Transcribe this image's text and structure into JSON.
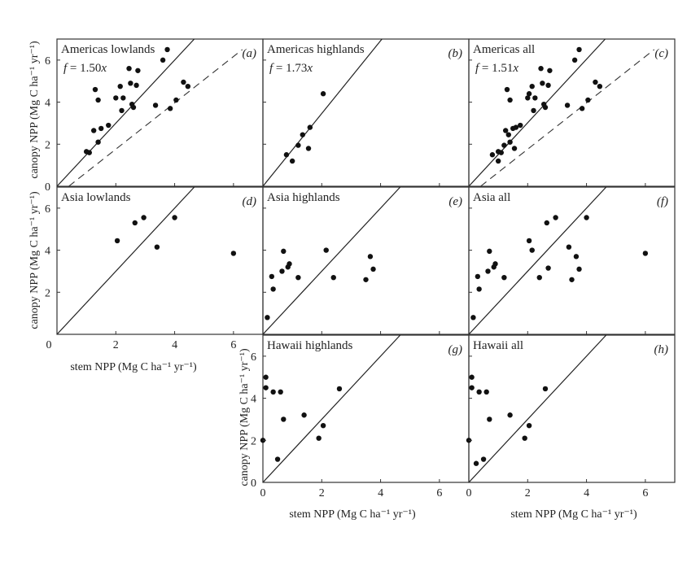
{
  "chart_data": [
    {
      "type": "scatter",
      "title": "Americas lowlands",
      "tag": "(a)",
      "equation": "f = 1.50x",
      "slope": 1.5,
      "dashed_line": true,
      "xlim": [
        0,
        7
      ],
      "ylim": [
        0,
        7
      ],
      "points": [
        [
          1.0,
          1.65
        ],
        [
          1.1,
          1.6
        ],
        [
          1.25,
          2.65
        ],
        [
          1.3,
          4.6
        ],
        [
          1.4,
          2.1
        ],
        [
          1.4,
          4.1
        ],
        [
          1.5,
          2.75
        ],
        [
          1.75,
          2.9
        ],
        [
          2.0,
          4.2
        ],
        [
          2.15,
          4.75
        ],
        [
          2.2,
          3.6
        ],
        [
          2.25,
          4.2
        ],
        [
          2.45,
          5.6
        ],
        [
          2.5,
          4.9
        ],
        [
          2.55,
          3.9
        ],
        [
          2.6,
          3.75
        ],
        [
          2.7,
          4.8
        ],
        [
          2.75,
          5.5
        ],
        [
          3.35,
          3.85
        ],
        [
          3.6,
          6.0
        ],
        [
          3.75,
          6.5
        ],
        [
          3.85,
          3.7
        ],
        [
          4.05,
          4.1
        ],
        [
          4.3,
          4.95
        ],
        [
          4.45,
          4.75
        ]
      ]
    },
    {
      "type": "scatter",
      "title": "Americas highlands",
      "tag": "(b)",
      "equation": "f = 1.73x",
      "slope": 1.73,
      "dashed_line": false,
      "xlim": [
        0,
        7
      ],
      "ylim": [
        0,
        7
      ],
      "points": [
        [
          0.8,
          1.5
        ],
        [
          1.0,
          1.2
        ],
        [
          1.2,
          1.95
        ],
        [
          1.35,
          2.45
        ],
        [
          1.55,
          1.8
        ],
        [
          1.6,
          2.8
        ],
        [
          2.05,
          4.4
        ]
      ]
    },
    {
      "type": "scatter",
      "title": "Americas all",
      "tag": "(c)",
      "equation": "f = 1.51x",
      "slope": 1.51,
      "dashed_line": true,
      "xlim": [
        0,
        7
      ],
      "ylim": [
        0,
        7
      ],
      "points": [
        [
          0.8,
          1.5
        ],
        [
          1.0,
          1.2
        ],
        [
          1.0,
          1.65
        ],
        [
          1.1,
          1.6
        ],
        [
          1.2,
          1.95
        ],
        [
          1.25,
          2.65
        ],
        [
          1.3,
          4.6
        ],
        [
          1.35,
          2.45
        ],
        [
          1.4,
          2.1
        ],
        [
          1.4,
          4.1
        ],
        [
          1.5,
          2.75
        ],
        [
          1.55,
          1.8
        ],
        [
          1.6,
          2.8
        ],
        [
          1.75,
          2.9
        ],
        [
          2.0,
          4.2
        ],
        [
          2.05,
          4.4
        ],
        [
          2.15,
          4.75
        ],
        [
          2.2,
          3.6
        ],
        [
          2.25,
          4.2
        ],
        [
          2.45,
          5.6
        ],
        [
          2.5,
          4.9
        ],
        [
          2.55,
          3.9
        ],
        [
          2.6,
          3.75
        ],
        [
          2.7,
          4.8
        ],
        [
          2.75,
          5.5
        ],
        [
          3.35,
          3.85
        ],
        [
          3.6,
          6.0
        ],
        [
          3.75,
          6.5
        ],
        [
          3.85,
          3.7
        ],
        [
          4.05,
          4.1
        ],
        [
          4.3,
          4.95
        ],
        [
          4.45,
          4.75
        ]
      ]
    },
    {
      "type": "scatter",
      "title": "Asia lowlands",
      "tag": "(d)",
      "slope": 1.5,
      "dashed_line": false,
      "xlim": [
        0,
        7
      ],
      "ylim": [
        0,
        7
      ],
      "xlabel": "stem NPP (Mg C ha⁻¹ yr⁻¹)",
      "points": [
        [
          2.05,
          4.45
        ],
        [
          2.65,
          5.3
        ],
        [
          2.95,
          5.55
        ],
        [
          3.4,
          4.15
        ],
        [
          4.0,
          5.55
        ],
        [
          6.0,
          3.85
        ]
      ]
    },
    {
      "type": "scatter",
      "title": "Asia highlands",
      "tag": "(e)",
      "slope": 1.5,
      "dashed_line": false,
      "xlim": [
        0,
        7
      ],
      "ylim": [
        0,
        7
      ],
      "points": [
        [
          0.15,
          0.8
        ],
        [
          0.3,
          2.75
        ],
        [
          0.35,
          2.15
        ],
        [
          0.65,
          3.0
        ],
        [
          0.7,
          3.95
        ],
        [
          0.85,
          3.2
        ],
        [
          0.9,
          3.35
        ],
        [
          1.2,
          2.7
        ],
        [
          2.15,
          4.0
        ],
        [
          2.4,
          2.7
        ],
        [
          3.5,
          2.6
        ],
        [
          3.65,
          3.7
        ],
        [
          3.75,
          3.1
        ]
      ]
    },
    {
      "type": "scatter",
      "title": "Asia all",
      "tag": "(f)",
      "slope": 1.5,
      "dashed_line": false,
      "xlim": [
        0,
        7
      ],
      "ylim": [
        0,
        7
      ],
      "points": [
        [
          0.15,
          0.8
        ],
        [
          0.3,
          2.75
        ],
        [
          0.35,
          2.15
        ],
        [
          0.65,
          3.0
        ],
        [
          0.7,
          3.95
        ],
        [
          0.85,
          3.2
        ],
        [
          0.9,
          3.35
        ],
        [
          1.2,
          2.7
        ],
        [
          2.05,
          4.45
        ],
        [
          2.15,
          4.0
        ],
        [
          2.4,
          2.7
        ],
        [
          2.65,
          5.3
        ],
        [
          2.7,
          3.15
        ],
        [
          2.95,
          5.55
        ],
        [
          3.4,
          4.15
        ],
        [
          3.5,
          2.6
        ],
        [
          3.65,
          3.7
        ],
        [
          3.75,
          3.1
        ],
        [
          4.0,
          5.55
        ],
        [
          6.0,
          3.85
        ]
      ]
    },
    {
      "type": "scatter",
      "title": "Hawaii highlands",
      "tag": "(g)",
      "slope": 1.5,
      "dashed_line": false,
      "xlim": [
        0,
        7
      ],
      "ylim": [
        0,
        7
      ],
      "xlabel": "stem NPP (Mg C ha⁻¹ yr⁻¹)",
      "ylabel": "canopy NPP (Mg C ha⁻¹ yr⁻¹)",
      "points": [
        [
          0.0,
          2.0
        ],
        [
          0.1,
          4.5
        ],
        [
          0.1,
          5.0
        ],
        [
          0.35,
          4.3
        ],
        [
          0.5,
          1.1
        ],
        [
          0.6,
          4.3
        ],
        [
          0.7,
          3.0
        ],
        [
          1.4,
          3.2
        ],
        [
          1.9,
          2.1
        ],
        [
          2.05,
          2.7
        ],
        [
          2.6,
          4.45
        ]
      ]
    },
    {
      "type": "scatter",
      "title": "Hawaii all",
      "tag": "(h)",
      "slope": 1.5,
      "dashed_line": false,
      "xlim": [
        0,
        7
      ],
      "ylim": [
        0,
        7
      ],
      "xlabel": "stem NPP (Mg C ha⁻¹ yr⁻¹)",
      "points": [
        [
          0.0,
          2.0
        ],
        [
          0.1,
          4.5
        ],
        [
          0.1,
          5.0
        ],
        [
          0.25,
          0.9
        ],
        [
          0.35,
          4.3
        ],
        [
          0.5,
          1.1
        ],
        [
          0.6,
          4.3
        ],
        [
          0.7,
          3.0
        ],
        [
          1.4,
          3.2
        ],
        [
          1.9,
          2.1
        ],
        [
          2.05,
          2.7
        ],
        [
          2.6,
          4.45
        ]
      ]
    }
  ],
  "axes": {
    "ylabel": "canopy NPP (Mg C ha⁻¹ yr⁻¹)",
    "xlabel": "stem NPP (Mg C ha⁻¹ yr⁻¹)",
    "ticks": [
      "0",
      "2",
      "4",
      "6"
    ],
    "tick_values": [
      0,
      2,
      4,
      6
    ]
  }
}
